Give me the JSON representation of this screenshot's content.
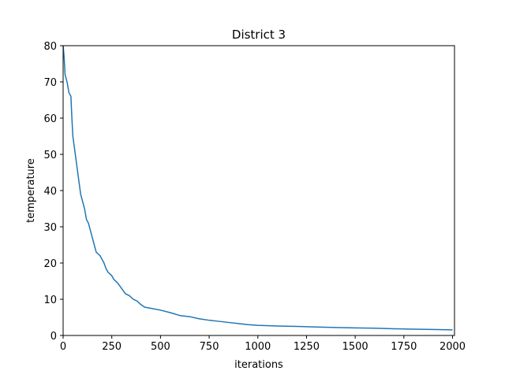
{
  "chart_data": {
    "type": "line",
    "title": "District 3",
    "xlabel": "iterations",
    "ylabel": "temperature",
    "xlim": [
      0,
      2010
    ],
    "ylim": [
      0,
      80
    ],
    "x_ticks": [
      0,
      250,
      500,
      750,
      1000,
      1250,
      1500,
      1750,
      2000
    ],
    "y_ticks": [
      0,
      10,
      20,
      30,
      40,
      50,
      60,
      70,
      80
    ],
    "grid": false,
    "line_color": "#1f77b4",
    "series": [
      {
        "name": "temperature",
        "x": [
          0,
          5,
          10,
          20,
          30,
          40,
          45,
          50,
          60,
          70,
          80,
          90,
          100,
          110,
          120,
          130,
          140,
          150,
          160,
          170,
          180,
          190,
          200,
          210,
          220,
          230,
          240,
          250,
          260,
          280,
          300,
          320,
          340,
          360,
          380,
          400,
          420,
          450,
          500,
          550,
          600,
          650,
          700,
          750,
          800,
          850,
          900,
          950,
          1000,
          1100,
          1200,
          1300,
          1400,
          1500,
          1600,
          1700,
          1800,
          1900,
          2000
        ],
        "y": [
          80,
          77,
          72,
          70,
          67,
          66,
          60,
          55,
          51,
          47,
          43,
          39,
          37,
          35,
          32,
          31,
          29,
          27,
          25,
          23,
          22.5,
          22,
          21,
          20,
          18.5,
          17.5,
          17,
          16.5,
          15.5,
          14.5,
          13,
          11.5,
          11,
          10,
          9.5,
          8.5,
          7.8,
          7.5,
          7,
          6.3,
          5.5,
          5.2,
          4.6,
          4.2,
          3.9,
          3.6,
          3.3,
          3.0,
          2.8,
          2.6,
          2.5,
          2.35,
          2.2,
          2.1,
          2.0,
          1.85,
          1.75,
          1.65,
          1.55
        ]
      }
    ]
  }
}
